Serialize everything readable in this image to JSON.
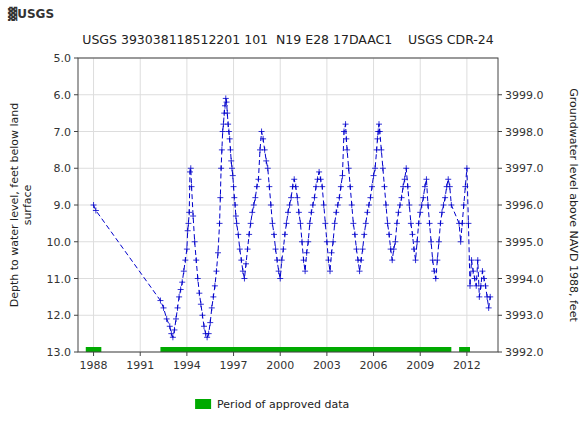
{
  "chart_data": {
    "type": "line",
    "title": "USGS 393038118512201 101  N19 E28 17DAAC1    USGS CDR-24",
    "annotations": [
      "▓USGS"
    ],
    "y_label": "Depth to water level, feet below land\nsurface",
    "y2_label": "Groundwater level above NAVD 1988, feet",
    "xlim": [
      1987.0,
      2014.0
    ],
    "xticks": [
      1988,
      1991,
      1994,
      1997,
      2000,
      2003,
      2006,
      2009,
      2012
    ],
    "ylim": [
      13.0,
      5.0
    ],
    "yticks": [
      {
        "value": 5.0,
        "label": "5.0"
      },
      {
        "value": 6.0,
        "label": "6.0"
      },
      {
        "value": 7.0,
        "label": "7.0"
      },
      {
        "value": 8.0,
        "label": "8.0"
      },
      {
        "value": 9.0,
        "label": "9.0"
      },
      {
        "value": 10.0,
        "label": "10.0"
      },
      {
        "value": 11.0,
        "label": "11.0"
      },
      {
        "value": 12.0,
        "label": "12.0"
      },
      {
        "value": 13.0,
        "label": "13.0"
      }
    ],
    "y2lim": [
      3992.0,
      4000.0
    ],
    "y2ticks": [
      {
        "value": 3992.0,
        "label": "3992.0"
      },
      {
        "value": 3993.0,
        "label": "3993.0"
      },
      {
        "value": 3994.0,
        "label": "3994.0"
      },
      {
        "value": 3995.0,
        "label": "3995.0"
      },
      {
        "value": 3996.0,
        "label": "3996.0"
      },
      {
        "value": 3997.0,
        "label": "3997.0"
      },
      {
        "value": 3998.0,
        "label": "3998.0"
      },
      {
        "value": 3999.0,
        "label": "3999.0"
      }
    ],
    "grid": true,
    "legend": "bottom",
    "x": [
      1988.0,
      1988.15,
      1992.3,
      1992.5,
      1992.7,
      1992.9,
      1993.0,
      1993.1,
      1993.2,
      1993.3,
      1993.4,
      1993.5,
      1993.6,
      1993.7,
      1993.8,
      1993.9,
      1994.0,
      1994.05,
      1994.1,
      1994.15,
      1994.2,
      1994.25,
      1994.3,
      1994.4,
      1994.5,
      1994.6,
      1994.7,
      1994.8,
      1994.9,
      1995.0,
      1995.1,
      1995.2,
      1995.3,
      1995.4,
      1995.5,
      1995.6,
      1995.7,
      1995.8,
      1995.9,
      1996.0,
      1996.1,
      1996.15,
      1996.2,
      1996.25,
      1996.3,
      1996.35,
      1996.4,
      1996.45,
      1996.5,
      1996.55,
      1996.6,
      1996.65,
      1996.7,
      1996.75,
      1996.8,
      1996.85,
      1996.9,
      1996.95,
      1997.0,
      1997.05,
      1997.1,
      1997.15,
      1997.2,
      1997.3,
      1997.4,
      1997.5,
      1997.6,
      1997.7,
      1997.8,
      1997.9,
      1998.0,
      1998.1,
      1998.2,
      1998.3,
      1998.4,
      1998.5,
      1998.6,
      1998.7,
      1998.8,
      1998.9,
      1999.0,
      1999.1,
      1999.2,
      1999.3,
      1999.4,
      1999.5,
      1999.6,
      1999.7,
      1999.8,
      1999.9,
      2000.0,
      2000.1,
      2000.2,
      2000.3,
      2000.4,
      2000.5,
      2000.6,
      2000.7,
      2000.8,
      2000.9,
      2001.0,
      2001.1,
      2001.2,
      2001.3,
      2001.4,
      2001.5,
      2001.6,
      2001.7,
      2001.8,
      2001.9,
      2002.0,
      2002.1,
      2002.2,
      2002.3,
      2002.4,
      2002.5,
      2002.6,
      2002.7,
      2002.8,
      2002.9,
      2003.0,
      2003.1,
      2003.2,
      2003.3,
      2003.4,
      2003.5,
      2003.6,
      2003.7,
      2003.8,
      2003.9,
      2004.0,
      2004.1,
      2004.2,
      2004.25,
      2004.3,
      2004.4,
      2004.5,
      2004.6,
      2004.7,
      2004.8,
      2004.9,
      2005.0,
      2005.1,
      2005.2,
      2005.3,
      2005.4,
      2005.5,
      2005.6,
      2005.7,
      2005.8,
      2005.9,
      2006.0,
      2006.1,
      2006.2,
      2006.25,
      2006.3,
      2006.35,
      2006.4,
      2006.5,
      2006.6,
      2006.7,
      2006.8,
      2006.9,
      2007.0,
      2007.1,
      2007.2,
      2007.3,
      2007.4,
      2007.5,
      2007.6,
      2007.7,
      2007.8,
      2007.9,
      2008.0,
      2008.1,
      2008.2,
      2008.3,
      2008.4,
      2008.5,
      2008.6,
      2008.7,
      2008.8,
      2008.9,
      2009.0,
      2009.1,
      2009.2,
      2009.3,
      2009.4,
      2009.5,
      2009.6,
      2009.7,
      2009.8,
      2009.9,
      2010.0,
      2010.1,
      2010.2,
      2010.3,
      2010.4,
      2010.5,
      2010.6,
      2010.7,
      2010.8,
      2010.9,
      2011.0,
      2011.5,
      2011.6,
      2011.7,
      2011.8,
      2011.9,
      2012.0,
      2012.1,
      2012.2,
      2012.3,
      2012.4,
      2012.5,
      2012.6,
      2012.7,
      2012.8,
      2012.9,
      2013.0,
      2013.1,
      2013.2,
      2013.3,
      2013.4,
      2013.5
    ],
    "series": [
      {
        "type": "line",
        "color": "#0000CC",
        "line_style": "dashed",
        "marker": "plus",
        "values": [
          9.0,
          9.15,
          11.6,
          11.8,
          12.1,
          12.3,
          12.5,
          12.6,
          12.4,
          12.1,
          11.8,
          11.5,
          11.3,
          11.1,
          10.8,
          10.5,
          10.2,
          9.7,
          9.5,
          9.2,
          8.1,
          8.0,
          8.5,
          9.3,
          10.0,
          10.5,
          11.0,
          11.4,
          11.7,
          12.0,
          12.3,
          12.5,
          12.6,
          12.5,
          12.2,
          11.8,
          11.5,
          11.2,
          10.8,
          10.3,
          9.5,
          8.8,
          8.0,
          7.5,
          7.0,
          6.8,
          6.5,
          6.3,
          6.1,
          6.2,
          6.5,
          6.8,
          7.0,
          7.2,
          7.5,
          7.8,
          8.0,
          8.2,
          8.5,
          8.8,
          9.0,
          9.3,
          9.5,
          9.8,
          10.2,
          10.5,
          10.8,
          11.0,
          10.6,
          10.2,
          9.8,
          9.5,
          9.2,
          9.0,
          8.8,
          8.5,
          8.3,
          7.5,
          7.0,
          7.2,
          7.5,
          7.8,
          8.0,
          8.5,
          9.0,
          9.5,
          9.8,
          10.2,
          10.5,
          10.8,
          11.0,
          10.5,
          10.2,
          9.8,
          9.5,
          9.2,
          9.0,
          8.8,
          8.5,
          8.3,
          8.5,
          8.8,
          9.2,
          9.5,
          10.0,
          10.5,
          10.8,
          10.3,
          10.0,
          9.5,
          9.2,
          9.0,
          8.8,
          8.5,
          8.3,
          8.1,
          8.3,
          8.5,
          9.0,
          9.5,
          10.0,
          10.5,
          10.8,
          10.3,
          10.0,
          9.5,
          9.2,
          9.0,
          8.8,
          8.5,
          8.2,
          7.0,
          6.8,
          7.2,
          7.5,
          8.0,
          8.5,
          9.0,
          9.5,
          9.8,
          10.2,
          10.5,
          10.8,
          10.5,
          10.2,
          9.8,
          9.5,
          9.2,
          9.0,
          8.8,
          8.5,
          8.2,
          8.0,
          7.5,
          7.2,
          7.0,
          6.8,
          7.0,
          7.5,
          8.0,
          8.5,
          9.0,
          9.5,
          9.8,
          10.2,
          10.5,
          10.2,
          10.0,
          9.5,
          9.2,
          9.0,
          8.8,
          8.5,
          8.3,
          8.0,
          8.5,
          9.0,
          9.5,
          9.8,
          10.2,
          10.5,
          10.0,
          9.5,
          9.2,
          9.0,
          8.8,
          8.5,
          8.3,
          9.0,
          9.5,
          10.0,
          10.5,
          10.8,
          11.0,
          10.5,
          10.0,
          9.5,
          9.2,
          9.0,
          8.8,
          8.5,
          8.3,
          8.5,
          9.0,
          9.5,
          10.0,
          9.5,
          9.0,
          8.5,
          8.0,
          9.5,
          11.2,
          10.5,
          10.8,
          11.0,
          11.2,
          10.5,
          11.5,
          11.2,
          10.8,
          11.0,
          11.2,
          11.5,
          11.8,
          11.5
        ]
      },
      {
        "type": "range",
        "name": "Period of approved data",
        "color": "#00AA00",
        "ranges": [
          [
            1987.5,
            1988.5
          ],
          [
            1992.3,
            2011.0
          ],
          [
            2011.5,
            2012.2
          ]
        ]
      }
    ]
  }
}
